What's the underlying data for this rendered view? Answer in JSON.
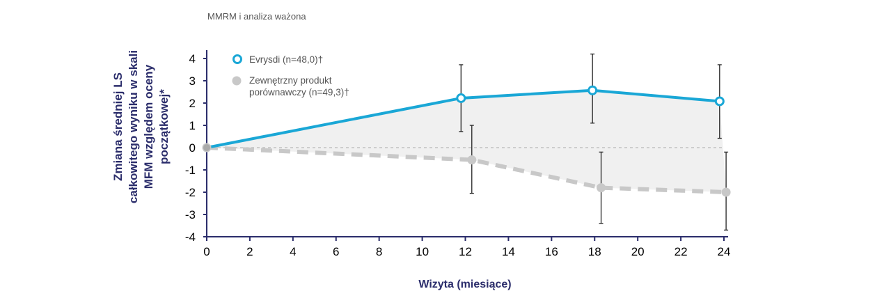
{
  "chart_data": {
    "type": "line",
    "subtitle": "MMRM i analiza ważona",
    "xlabel": "Wizyta (miesiące)",
    "ylabel_lines": [
      "Zmiana średniej LS",
      "całkowitego wyniku w skali",
      "MFM względem oceny",
      "początkowej*"
    ],
    "xlim": [
      0,
      24
    ],
    "ylim": [
      -4,
      4
    ],
    "xticks": [
      0,
      2,
      4,
      6,
      8,
      10,
      12,
      14,
      16,
      18,
      20,
      22,
      24
    ],
    "yticks": [
      4,
      3,
      2,
      1,
      0,
      -1,
      -2,
      -3,
      -4
    ],
    "legend_position": "top-left",
    "series": [
      {
        "name": "Evrysdi (n=48,0)†",
        "color": "#1aa7d6",
        "style": "solid",
        "marker": "open-circle",
        "points": [
          {
            "x": 0,
            "y": 0
          },
          {
            "x": 11.8,
            "y": 2.22,
            "err_hi": 3.72,
            "err_lo": 0.72
          },
          {
            "x": 17.9,
            "y": 2.57,
            "err_hi": 4.2,
            "err_lo": 1.1
          },
          {
            "x": 23.8,
            "y": 2.08,
            "err_hi": 3.72,
            "err_lo": 0.42
          }
        ]
      },
      {
        "name_lines": [
          "Zewnętrzny produkt",
          "porównawczy (n=49,3)†"
        ],
        "color": "#c8c8c8",
        "style": "dashed",
        "marker": "filled-circle",
        "points": [
          {
            "x": 0,
            "y": 0
          },
          {
            "x": 12.3,
            "y": -0.55,
            "err_hi": 1.0,
            "err_lo": -2.05
          },
          {
            "x": 18.3,
            "y": -1.8,
            "err_hi": -0.2,
            "err_lo": -3.4
          },
          {
            "x": 24.1,
            "y": -2.0,
            "err_hi": -0.2,
            "err_lo": -3.7
          }
        ]
      }
    ]
  }
}
